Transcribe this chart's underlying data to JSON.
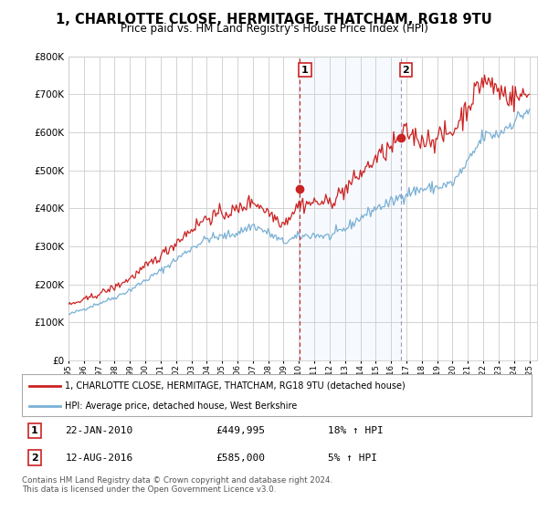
{
  "title": "1, CHARLOTTE CLOSE, HERMITAGE, THATCHAM, RG18 9TU",
  "subtitle": "Price paid vs. HM Land Registry's House Price Index (HPI)",
  "title_fontsize": 10.5,
  "subtitle_fontsize": 8.5,
  "background_color": "#ffffff",
  "plot_bg_color": "#ffffff",
  "grid_color": "#cccccc",
  "ylim": [
    0,
    800000
  ],
  "yticks": [
    0,
    100000,
    200000,
    300000,
    400000,
    500000,
    600000,
    700000,
    800000
  ],
  "ytick_labels": [
    "£0",
    "£100K",
    "£200K",
    "£300K",
    "£400K",
    "£500K",
    "£600K",
    "£700K",
    "£800K"
  ],
  "sale1_date": 2010.06,
  "sale1_price": 449995,
  "sale2_date": 2016.62,
  "sale2_price": 585000,
  "legend_line1": "1, CHARLOTTE CLOSE, HERMITAGE, THATCHAM, RG18 9TU (detached house)",
  "legend_line2": "HPI: Average price, detached house, West Berkshire",
  "footer": "Contains HM Land Registry data © Crown copyright and database right 2024.\nThis data is licensed under the Open Government Licence v3.0.",
  "line_color_property": "#cc2222",
  "line_color_hpi": "#7ab0d4",
  "shade_color": "#ddeeff",
  "vline1_color": "#cc2222",
  "vline2_color": "#9999bb",
  "marker_color": "#cc2222"
}
